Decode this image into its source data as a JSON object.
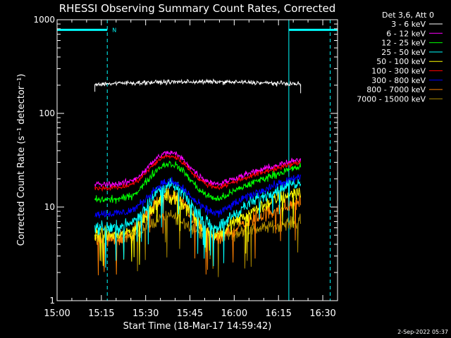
{
  "chart_data": {
    "type": "line",
    "title": "RHESSI Observing Summary Count Rates, Corrected",
    "xlabel": "Start Time (18-Mar-17 14:59:42)",
    "ylabel": "Corrected Count Rate (s⁻¹ detector⁻¹)",
    "yscale": "log",
    "ylim": [
      1,
      1000
    ],
    "xlim_minutes": [
      0,
      95
    ],
    "x_ticks": [
      {
        "minute": 0,
        "label": "15:00"
      },
      {
        "minute": 15,
        "label": "15:15"
      },
      {
        "minute": 30,
        "label": "15:30"
      },
      {
        "minute": 45,
        "label": "15:45"
      },
      {
        "minute": 60,
        "label": "16:00"
      },
      {
        "minute": 75,
        "label": "16:15"
      },
      {
        "minute": 90,
        "label": "16:30"
      }
    ],
    "y_ticks": [
      {
        "value": 1,
        "label": "1"
      },
      {
        "value": 10,
        "label": "10"
      },
      {
        "value": 100,
        "label": "100"
      },
      {
        "value": 1000,
        "label": "1000"
      }
    ],
    "legend_header": "Det 3,6, Att 0",
    "series": [
      {
        "name": "3 - 6 keV",
        "color": "#ffffff",
        "kind": "flat",
        "t": [
          12.8,
          82.5
        ],
        "base": 205,
        "peak": 0,
        "end": 0,
        "noise": 0.035
      },
      {
        "name": "6 - 12 keV",
        "color": "#ff00ff",
        "kind": "flare",
        "t": [
          12.8,
          82.5
        ],
        "base": 17.5,
        "peak": 38,
        "end": 32,
        "noise": 0.05
      },
      {
        "name": "12 - 25 keV",
        "color": "#00ff00",
        "kind": "flare",
        "t": [
          12.8,
          82.5
        ],
        "base": 12,
        "peak": 29,
        "end": 27,
        "noise": 0.06
      },
      {
        "name": "25 - 50 keV",
        "color": "#00ffff",
        "kind": "flare",
        "t": [
          12.8,
          82.5
        ],
        "base": 6,
        "peak": 17,
        "end": 19,
        "noise": 0.1
      },
      {
        "name": "50 - 100 keV",
        "color": "#ffff00",
        "kind": "flare",
        "t": [
          12.8,
          82.5
        ],
        "base": 5,
        "peak": 13,
        "end": 15,
        "noise": 0.12
      },
      {
        "name": "100 - 300 keV",
        "color": "#ff0000",
        "kind": "flare",
        "t": [
          12.8,
          82.5
        ],
        "base": 16,
        "peak": 35,
        "end": 30,
        "noise": 0.04
      },
      {
        "name": "300 - 800 keV",
        "color": "#0000ff",
        "kind": "flare",
        "t": [
          12.8,
          82.5
        ],
        "base": 8.5,
        "peak": 18.5,
        "end": 21,
        "noise": 0.07
      },
      {
        "name": "800 - 7000 keV",
        "color": "#ff8000",
        "kind": "flare",
        "t": [
          12.8,
          82.5
        ],
        "base": 4.5,
        "peak": 13,
        "end": 11.5,
        "noise": 0.13
      },
      {
        "name": "7000 - 15000 keV",
        "color": "#aa8800",
        "kind": "flare",
        "t": [
          12.8,
          82.5
        ],
        "base": 4.8,
        "peak": 8,
        "end": 7,
        "noise": 0.1
      }
    ],
    "night_markers": [
      {
        "start_minute": 0,
        "end_minute": 17,
        "label": "N"
      },
      {
        "start_minute": 78.5,
        "end_minute": 95,
        "label": ""
      }
    ],
    "marker_level": 780,
    "saa_dashes_minutes": [
      17,
      92.5
    ]
  },
  "footer": {
    "timestamp": "2-Sep-2022 05:37"
  }
}
